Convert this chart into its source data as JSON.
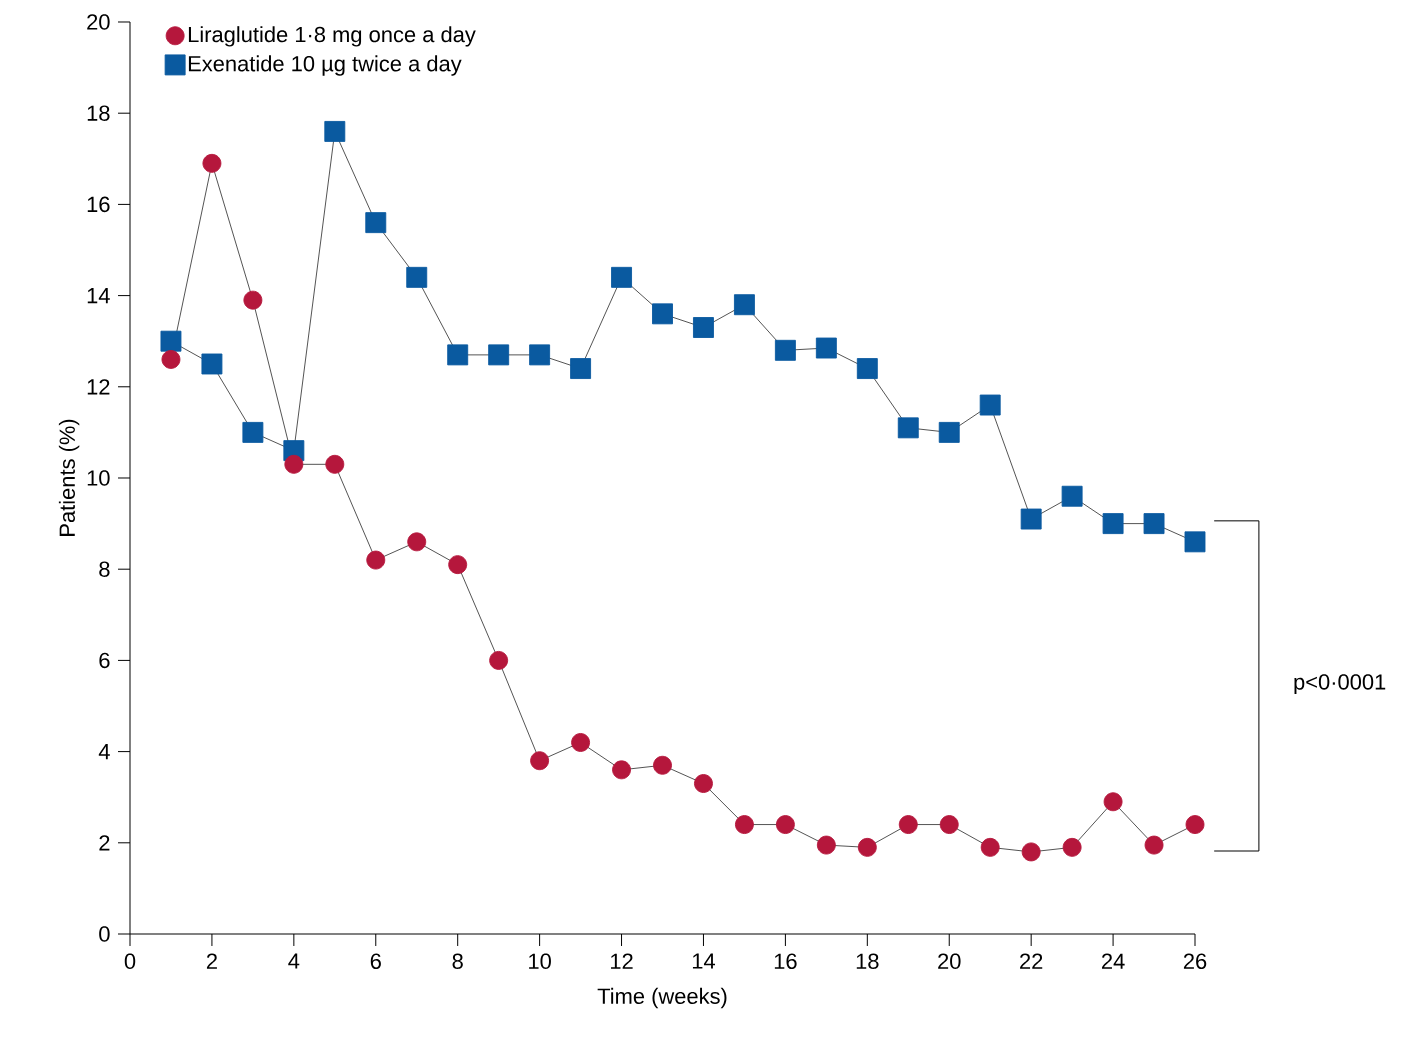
{
  "chart_data": {
    "type": "line",
    "xlabel": "Time (weeks)",
    "ylabel": "Patients (%)",
    "x": [
      1,
      2,
      3,
      4,
      5,
      6,
      7,
      8,
      9,
      10,
      11,
      12,
      13,
      14,
      15,
      16,
      17,
      18,
      19,
      20,
      21,
      22,
      23,
      24,
      25,
      26
    ],
    "series": [
      {
        "name": "Liraglutide 1·8 mg once a day",
        "color": "#b5173c",
        "marker": "circle",
        "values": [
          12.6,
          16.9,
          13.9,
          10.3,
          10.3,
          8.2,
          8.6,
          8.1,
          6.0,
          3.8,
          4.2,
          3.6,
          3.7,
          3.3,
          2.4,
          2.4,
          1.95,
          1.9,
          2.4,
          2.4,
          1.9,
          1.8,
          1.9,
          2.9,
          1.95,
          2.4
        ]
      },
      {
        "name": "Exenatide 10 µg twice a day",
        "color": "#0a5aa0",
        "marker": "square",
        "values": [
          13.0,
          12.5,
          11.0,
          10.6,
          17.6,
          15.6,
          14.4,
          12.7,
          12.7,
          12.7,
          12.4,
          14.4,
          13.6,
          13.3,
          13.8,
          12.8,
          12.85,
          12.4,
          11.1,
          11.0,
          11.6,
          9.1,
          9.6,
          9.0,
          9.0,
          8.6
        ]
      }
    ],
    "line_style": "solid",
    "legend": "top left",
    "xlim": [
      0,
      26
    ],
    "ylim": [
      0,
      20
    ],
    "xticks": [
      0,
      2,
      4,
      6,
      8,
      10,
      12,
      14,
      16,
      18,
      20,
      22,
      24,
      26
    ],
    "yticks": [
      0,
      2,
      4,
      6,
      8,
      10,
      12,
      14,
      16,
      18,
      20
    ],
    "annotations": [
      "p<0·0001"
    ]
  }
}
